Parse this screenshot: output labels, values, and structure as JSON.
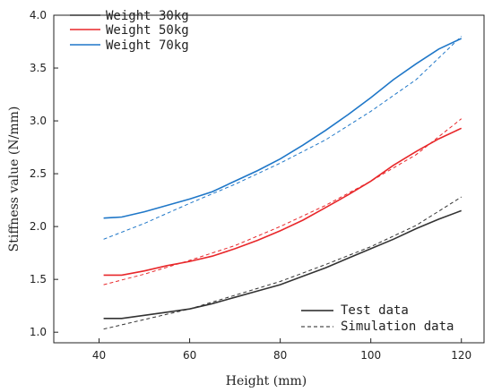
{
  "chart_data": {
    "type": "line",
    "xlabel": "Height (mm)",
    "ylabel": "Stiffness value (N/mm)",
    "xlim": [
      30,
      125
    ],
    "ylim": [
      0.9,
      4.0
    ],
    "xticks": [
      "40",
      "60",
      "80",
      "100",
      "120"
    ],
    "yticks": [
      "1.0",
      "1.5",
      "2.0",
      "2.5",
      "3.0",
      "3.5",
      "4.0"
    ],
    "legend_position": "top-left",
    "style_legend_position": "bottom-right",
    "series": [
      {
        "name": "Weight 30kg",
        "color": "#333333",
        "test": {
          "x": [
            41,
            45,
            50,
            55,
            60,
            65,
            70,
            75,
            80,
            85,
            90,
            95,
            100,
            105,
            110,
            115,
            120
          ],
          "y": [
            1.13,
            1.13,
            1.16,
            1.19,
            1.22,
            1.27,
            1.33,
            1.39,
            1.45,
            1.53,
            1.61,
            1.7,
            1.79,
            1.88,
            1.98,
            2.07,
            2.15
          ]
        },
        "simulation": {
          "x": [
            41,
            50,
            60,
            70,
            80,
            90,
            100,
            110,
            120
          ],
          "y": [
            1.03,
            1.12,
            1.22,
            1.35,
            1.48,
            1.64,
            1.81,
            2.01,
            2.28
          ]
        }
      },
      {
        "name": "Weight 50kg",
        "color": "#e8272a",
        "test": {
          "x": [
            41,
            45,
            50,
            55,
            60,
            65,
            70,
            75,
            80,
            85,
            90,
            95,
            100,
            105,
            110,
            115,
            120
          ],
          "y": [
            1.54,
            1.54,
            1.58,
            1.63,
            1.67,
            1.72,
            1.79,
            1.87,
            1.96,
            2.06,
            2.18,
            2.3,
            2.43,
            2.58,
            2.71,
            2.83,
            2.93
          ]
        },
        "simulation": {
          "x": [
            41,
            50,
            60,
            70,
            80,
            90,
            100,
            110,
            120
          ],
          "y": [
            1.45,
            1.55,
            1.68,
            1.82,
            2.0,
            2.2,
            2.43,
            2.68,
            3.02
          ]
        }
      },
      {
        "name": "Weight 70kg",
        "color": "#1f77c8",
        "test": {
          "x": [
            41,
            45,
            50,
            55,
            60,
            65,
            70,
            75,
            80,
            85,
            90,
            95,
            100,
            105,
            110,
            115,
            120
          ],
          "y": [
            2.08,
            2.09,
            2.14,
            2.2,
            2.26,
            2.33,
            2.43,
            2.53,
            2.64,
            2.77,
            2.91,
            3.06,
            3.22,
            3.39,
            3.54,
            3.68,
            3.78
          ]
        },
        "simulation": {
          "x": [
            41,
            50,
            60,
            70,
            80,
            90,
            100,
            110,
            120
          ],
          "y": [
            1.88,
            2.03,
            2.22,
            2.4,
            2.6,
            2.82,
            3.09,
            3.39,
            3.8
          ]
        }
      }
    ],
    "style_legend": [
      {
        "label": "Test data",
        "dash": "solid"
      },
      {
        "label": "Simulation data",
        "dash": "dashed"
      }
    ]
  }
}
